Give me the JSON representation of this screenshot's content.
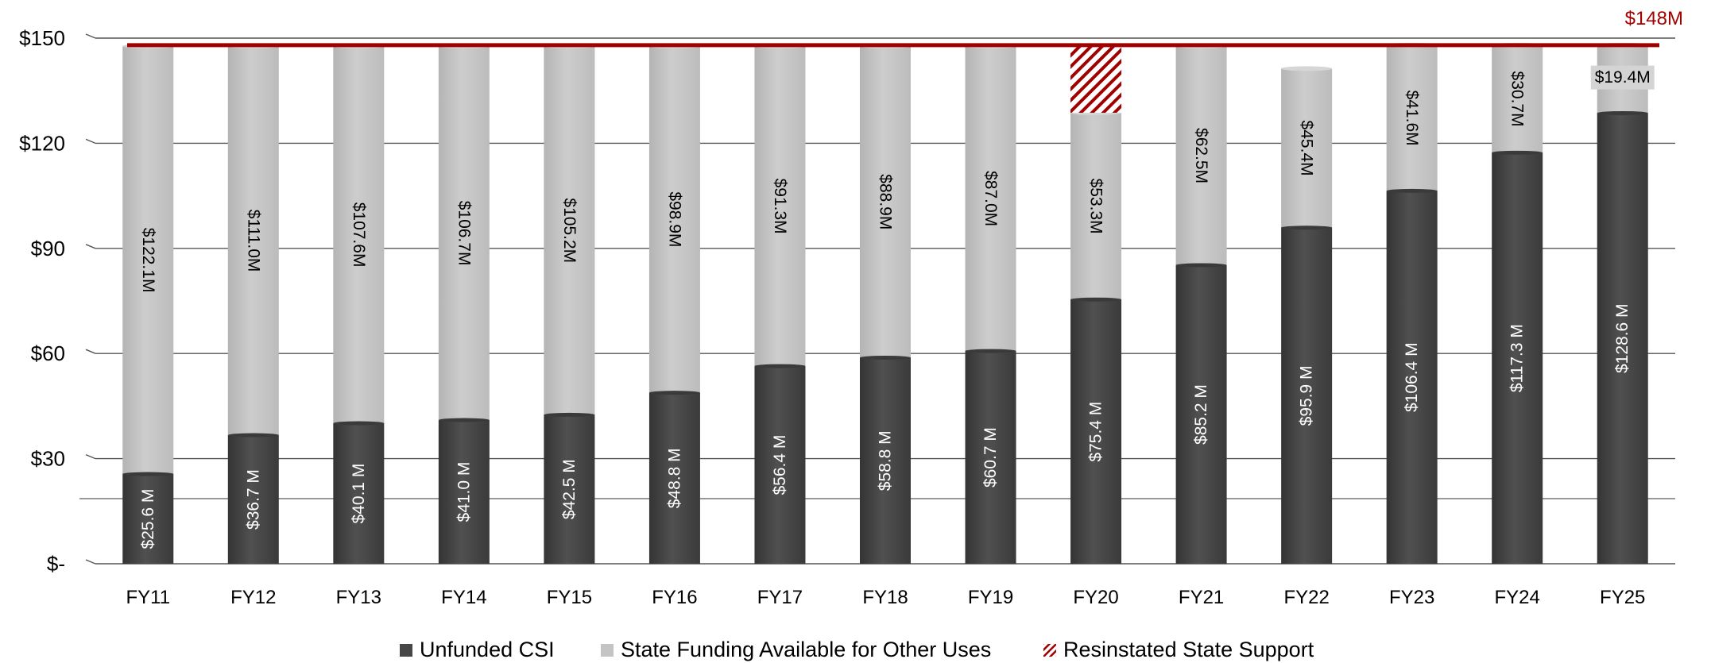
{
  "chart_data": {
    "type": "bar",
    "stacked": true,
    "categories": [
      "FY11",
      "FY12",
      "FY13",
      "FY14",
      "FY15",
      "FY16",
      "FY17",
      "FY18",
      "FY19",
      "FY20",
      "FY21",
      "FY22",
      "FY23",
      "FY24",
      "FY25"
    ],
    "series": [
      {
        "name": "Unfunded CSI",
        "color": "#474747",
        "values": [
          25.6,
          36.7,
          40.1,
          41.0,
          42.5,
          48.8,
          56.4,
          58.8,
          60.7,
          75.4,
          85.2,
          95.9,
          106.4,
          117.3,
          128.6
        ],
        "labels": [
          "$25.6 M",
          "$36.7 M",
          "$40.1 M",
          "$41.0 M",
          "$42.5 M",
          "$48.8 M",
          "$56.4 M",
          "$58.8 M",
          "$60.7 M",
          "$75.4 M",
          "$85.2 M",
          "$95.9 M",
          "$106.4 M",
          "$117.3 M",
          "$128.6 M"
        ]
      },
      {
        "name": "State Funding Available for Other Uses",
        "color": "#c4c4c4",
        "values": [
          122.1,
          111.0,
          107.6,
          106.7,
          105.2,
          98.9,
          91.3,
          88.9,
          87.0,
          53.3,
          62.5,
          45.4,
          41.6,
          30.7,
          19.4
        ],
        "labels": [
          "$122.1M",
          "$111.0M",
          "$107.6M",
          "$106.7M",
          "$105.2M",
          "$98.9M",
          "$91.3M",
          "$88.9M",
          "$87.0M",
          "$53.3M",
          "$62.5M",
          "$45.4M",
          "$41.6M",
          "$30.7M",
          "$19.4M"
        ]
      },
      {
        "name": "Resinstated State Support",
        "color": "#a00000",
        "pattern": "diagonal-hatch",
        "values": [
          0,
          0,
          0,
          0,
          0,
          0,
          0,
          0,
          0,
          19.0,
          0,
          0,
          0,
          0,
          0
        ]
      }
    ],
    "reference_line": {
      "value": 148,
      "label": "$148M",
      "color": "#a00000"
    },
    "yticks": [
      0,
      30,
      60,
      90,
      120,
      150
    ],
    "ytick_labels": [
      "$-",
      "$30",
      "$60",
      "$90",
      "$120",
      "$150"
    ],
    "ylim": [
      0,
      150
    ],
    "grid": true,
    "legend_position": "bottom"
  }
}
